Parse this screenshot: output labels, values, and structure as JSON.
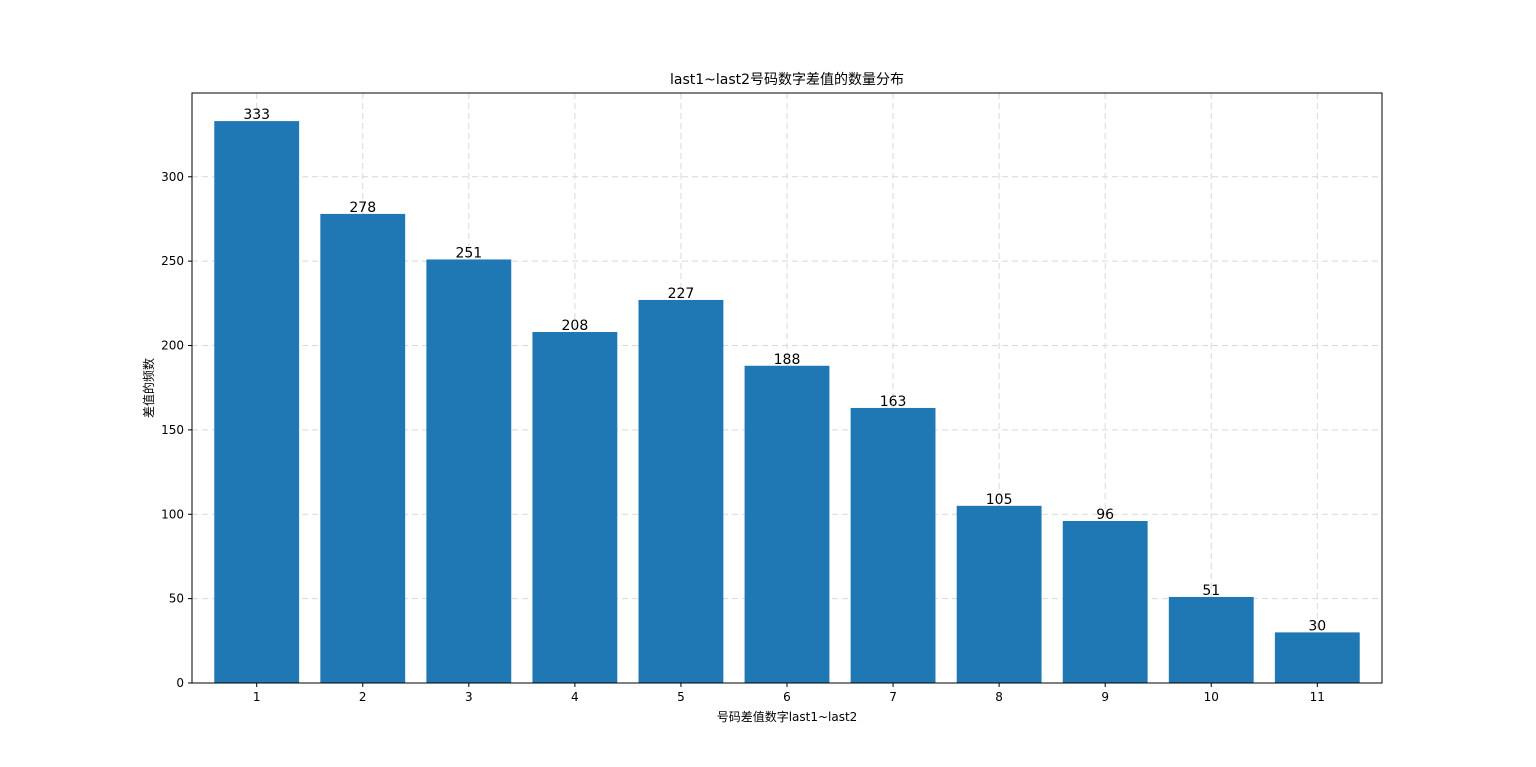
{
  "chart_data": {
    "type": "bar",
    "title": "last1~last2号码数字差值的数量分布",
    "xlabel": "号码差值数字last1~last2",
    "ylabel": "差值的频数",
    "categories": [
      "1",
      "2",
      "3",
      "4",
      "5",
      "6",
      "7",
      "8",
      "9",
      "10",
      "11"
    ],
    "values": [
      333,
      278,
      251,
      208,
      227,
      188,
      163,
      105,
      96,
      51,
      30
    ],
    "data_labels": [
      "333",
      "278",
      "251",
      "208",
      "227",
      "188",
      "163",
      "105",
      "96",
      "51",
      "30"
    ],
    "y_ticks": [
      0,
      50,
      100,
      150,
      200,
      250,
      300
    ],
    "y_tick_labels": [
      "0",
      "50",
      "100",
      "150",
      "200",
      "250",
      "300"
    ],
    "ylim": [
      0,
      349.65
    ],
    "grid": true,
    "bar_color": "#1f77b4"
  }
}
